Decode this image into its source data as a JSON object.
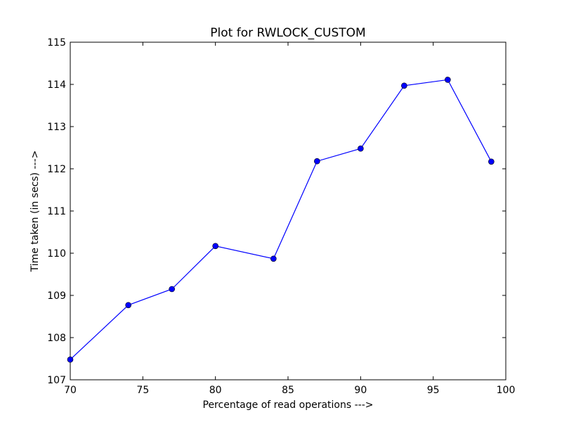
{
  "chart_data": {
    "type": "line",
    "title": "Plot for RWLOCK_CUSTOM",
    "xlabel": "Percentage of read operations --->",
    "ylabel": "Time taken (in secs) --->",
    "xlim": [
      70,
      100
    ],
    "ylim": [
      107,
      115
    ],
    "xticks": [
      70,
      75,
      80,
      85,
      90,
      95,
      100
    ],
    "yticks": [
      107,
      108,
      109,
      110,
      111,
      112,
      113,
      114,
      115
    ],
    "grid": false,
    "legend": "none",
    "series": [
      {
        "color": "#0000ff",
        "marker": "circle",
        "x": [
          70,
          74,
          77,
          80,
          84,
          87,
          90,
          93,
          96,
          99
        ],
        "y": [
          107.48,
          108.77,
          109.15,
          110.17,
          109.87,
          112.18,
          112.48,
          113.97,
          114.11,
          112.17
        ]
      }
    ]
  }
}
